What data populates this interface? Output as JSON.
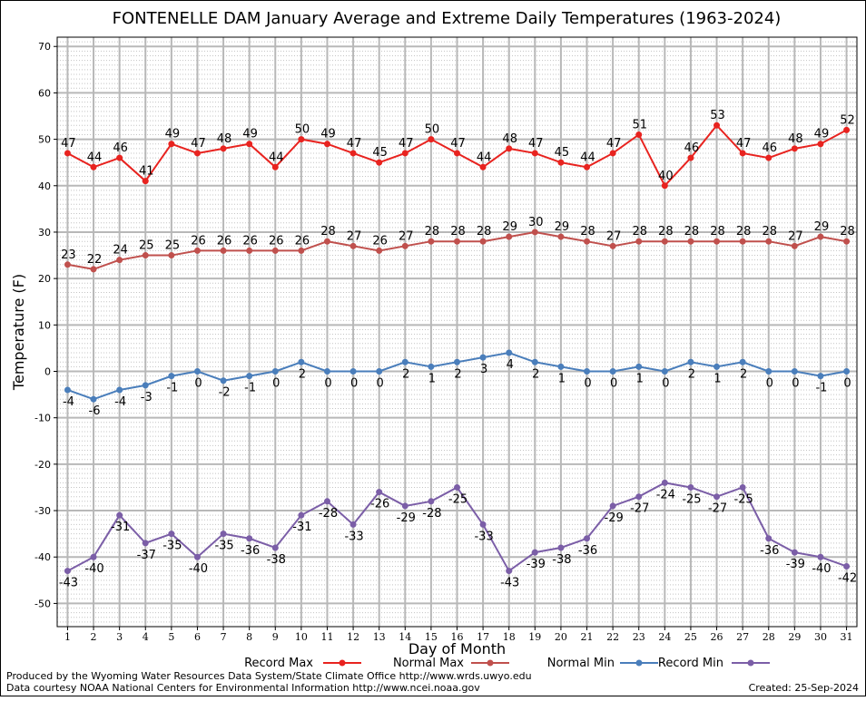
{
  "chart_data": {
    "type": "line",
    "title": "FONTENELLE DAM January Average and Extreme Daily Temperatures (1963-2024)",
    "xlabel": "Day of Month",
    "ylabel": "Temperature (F)",
    "ylim": [
      -55,
      72
    ],
    "yticks": [
      -50,
      -40,
      -30,
      -20,
      -10,
      0,
      10,
      20,
      30,
      40,
      50,
      60,
      70
    ],
    "xlim": [
      0.6,
      31.4
    ],
    "x": [
      1,
      2,
      3,
      4,
      5,
      6,
      7,
      8,
      9,
      10,
      11,
      12,
      13,
      14,
      15,
      16,
      17,
      18,
      19,
      20,
      21,
      22,
      23,
      24,
      25,
      26,
      27,
      28,
      29,
      30,
      31
    ],
    "grid": true,
    "legend_placement": "bottom",
    "series": [
      {
        "name": "Record Max",
        "color": "#e8231f",
        "label_pos": "above",
        "values": [
          47,
          44,
          46,
          41,
          49,
          47,
          48,
          49,
          44,
          50,
          49,
          47,
          45,
          47,
          50,
          47,
          44,
          48,
          47,
          45,
          44,
          47,
          51,
          40,
          46,
          53,
          47,
          46,
          48,
          49,
          52
        ]
      },
      {
        "name": "Normal Max",
        "color": "#c0504d",
        "label_pos": "above",
        "values": [
          23,
          22,
          24,
          25,
          25,
          26,
          26,
          26,
          26,
          26,
          28,
          27,
          26,
          27,
          28,
          28,
          28,
          29,
          30,
          29,
          28,
          27,
          28,
          28,
          28,
          28,
          28,
          28,
          27,
          29,
          28
        ]
      },
      {
        "name": "Normal Min",
        "color": "#4a7ebb",
        "label_pos": "below",
        "values": [
          -4,
          -6,
          -4,
          -3,
          -1,
          0,
          -2,
          -1,
          0,
          2,
          0,
          0,
          0,
          2,
          1,
          2,
          3,
          4,
          2,
          1,
          0,
          0,
          1,
          0,
          2,
          1,
          2,
          0,
          0,
          -1,
          0
        ]
      },
      {
        "name": "Record Min",
        "color": "#7b5ea7",
        "label_pos": "below",
        "values": [
          -43,
          -40,
          -31,
          -37,
          -35,
          -40,
          -35,
          -36,
          -38,
          -31,
          -28,
          -33,
          -26,
          -29,
          -28,
          -25,
          -33,
          -43,
          -39,
          -38,
          -36,
          -29,
          -27,
          -24,
          -25,
          -27,
          -25,
          -36,
          -39,
          -40,
          -42
        ]
      }
    ]
  },
  "footer": {
    "produced_by": "Produced by the Wyoming Water Resources Data System/State Climate Office http://www.wrds.uwyo.edu",
    "courtesy": "Data courtesy NOAA National Centers for Environmental Information http://www.ncei.noaa.gov",
    "created": "Created:  25-Sep-2024"
  }
}
